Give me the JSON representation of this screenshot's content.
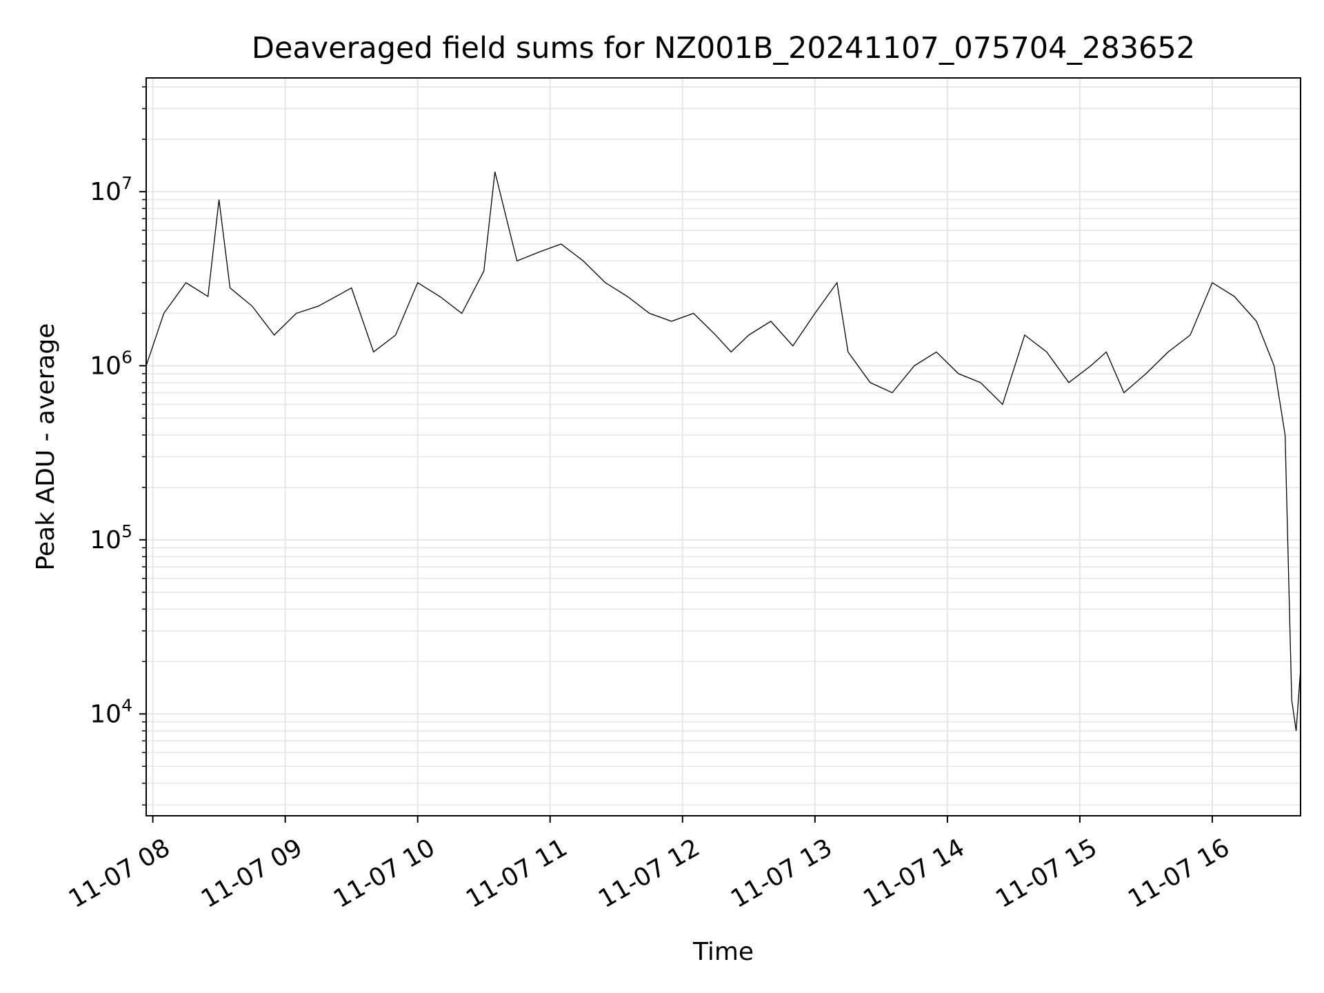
{
  "chart_data": {
    "type": "line",
    "title": "Deaveraged field sums for NZ001B_20241107_075704_283652",
    "xlabel": "Time",
    "ylabel": "Peak ADU - average",
    "yscale": "log",
    "ylim": [
      2600,
      45000000
    ],
    "xlim": [
      "2024-11-07 07:57",
      "2024-11-07 16:40"
    ],
    "grid": true,
    "line_color": "#000000",
    "grid_color": "#e6e6e6",
    "x_ticks": [
      "11-07 08",
      "11-07 09",
      "11-07 10",
      "11-07 11",
      "11-07 12",
      "11-07 13",
      "11-07 14",
      "11-07 15",
      "11-07 16"
    ],
    "y_ticks": [
      {
        "value": 10000,
        "base": "10",
        "exp": "4"
      },
      {
        "value": 100000,
        "base": "10",
        "exp": "5"
      },
      {
        "value": 1000000,
        "base": "10",
        "exp": "6"
      },
      {
        "value": 10000000,
        "base": "10",
        "exp": "7"
      }
    ],
    "series": [
      {
        "x": [
          "2024-11-07 07:57",
          "2024-11-07 08:05",
          "2024-11-07 08:15",
          "2024-11-07 08:25",
          "2024-11-07 08:30",
          "2024-11-07 08:35",
          "2024-11-07 08:45",
          "2024-11-07 08:55",
          "2024-11-07 09:05",
          "2024-11-07 09:15",
          "2024-11-07 09:23",
          "2024-11-07 09:30",
          "2024-11-07 09:40",
          "2024-11-07 09:50",
          "2024-11-07 10:00",
          "2024-11-07 10:10",
          "2024-11-07 10:20",
          "2024-11-07 10:30",
          "2024-11-07 10:35",
          "2024-11-07 10:45",
          "2024-11-07 10:55",
          "2024-11-07 11:05",
          "2024-11-07 11:15",
          "2024-11-07 11:25",
          "2024-11-07 11:35",
          "2024-11-07 11:45",
          "2024-11-07 11:55",
          "2024-11-07 12:05",
          "2024-11-07 12:15",
          "2024-11-07 12:22",
          "2024-11-07 12:30",
          "2024-11-07 12:40",
          "2024-11-07 12:50",
          "2024-11-07 13:00",
          "2024-11-07 13:10",
          "2024-11-07 13:15",
          "2024-11-07 13:25",
          "2024-11-07 13:35",
          "2024-11-07 13:45",
          "2024-11-07 13:55",
          "2024-11-07 14:05",
          "2024-11-07 14:15",
          "2024-11-07 14:25",
          "2024-11-07 14:35",
          "2024-11-07 14:45",
          "2024-11-07 14:55",
          "2024-11-07 15:05",
          "2024-11-07 15:12",
          "2024-11-07 15:20",
          "2024-11-07 15:30",
          "2024-11-07 15:40",
          "2024-11-07 15:50",
          "2024-11-07 16:00",
          "2024-11-07 16:10",
          "2024-11-07 16:20",
          "2024-11-07 16:28",
          "2024-11-07 16:33",
          "2024-11-07 16:36",
          "2024-11-07 16:38",
          "2024-11-07 16:40"
        ],
        "y": [
          1000000,
          2000000,
          3000000,
          2500000,
          9000000,
          2800000,
          2200000,
          1500000,
          2000000,
          2200000,
          2500000,
          2800000,
          1200000,
          1500000,
          3000000,
          2500000,
          2000000,
          3500000,
          13000000,
          4000000,
          4500000,
          5000000,
          4000000,
          3000000,
          2500000,
          2000000,
          1800000,
          2000000,
          1500000,
          1200000,
          1500000,
          1800000,
          1300000,
          2000000,
          3000000,
          1200000,
          800000,
          700000,
          1000000,
          1200000,
          900000,
          800000,
          600000,
          1500000,
          1200000,
          800000,
          1000000,
          1200000,
          700000,
          900000,
          1200000,
          1500000,
          3000000,
          2500000,
          1800000,
          1000000,
          400000,
          12000,
          8000,
          18000
        ]
      }
    ]
  }
}
